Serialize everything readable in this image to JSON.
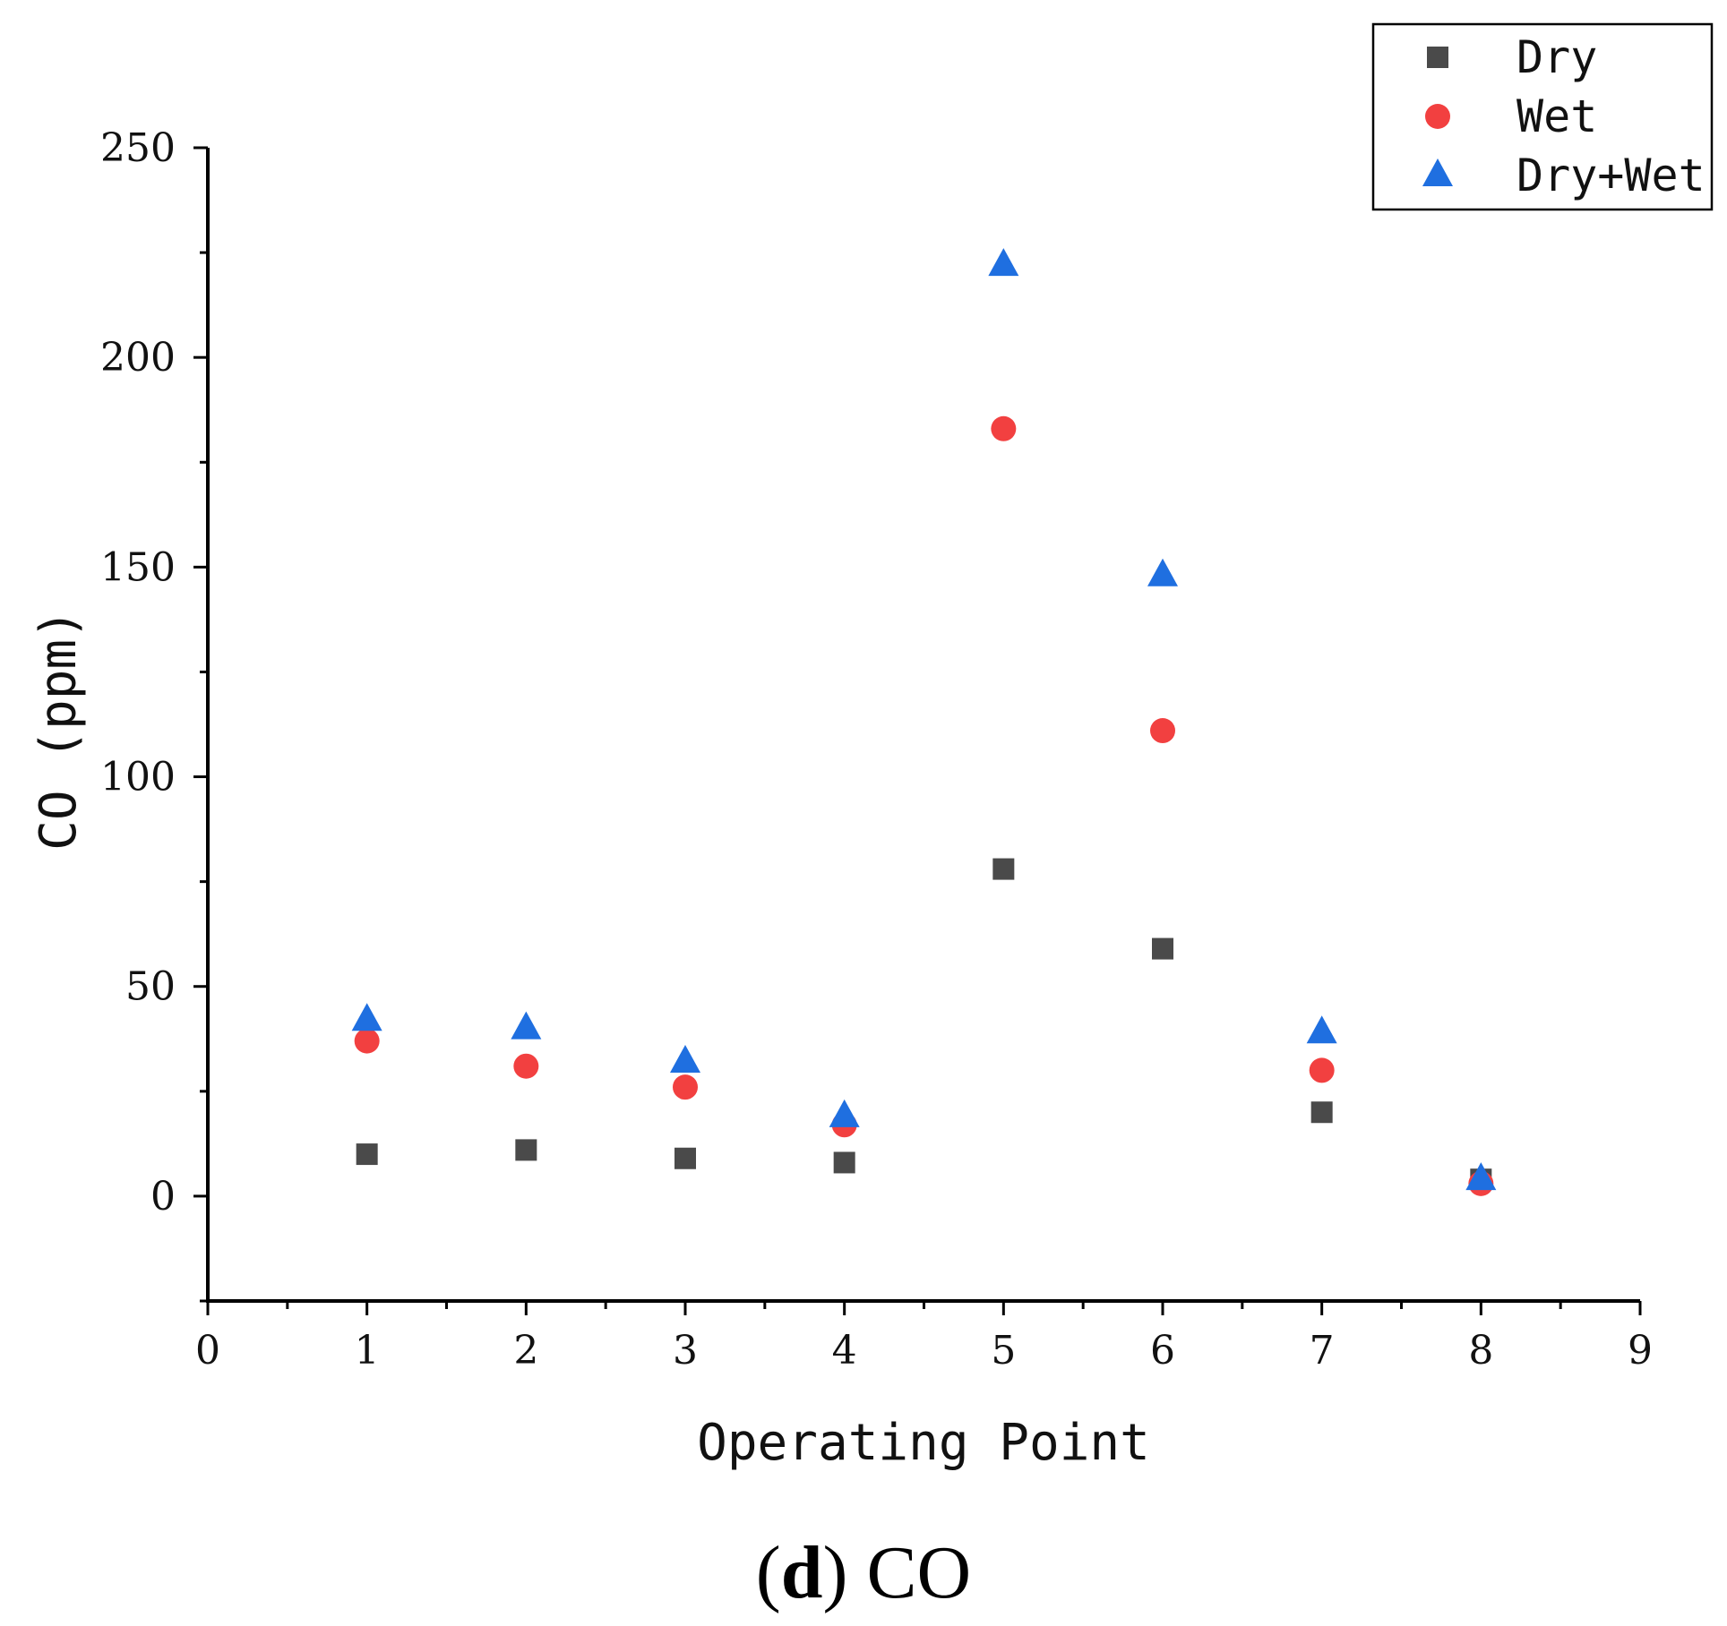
{
  "chart_data": {
    "type": "scatter",
    "title": "",
    "xlabel": "Operating Point",
    "ylabel": "CO (ppm)",
    "xlim": [
      0,
      9
    ],
    "ylim": [
      -25,
      250
    ],
    "xticks": [
      0,
      1,
      2,
      3,
      4,
      5,
      6,
      7,
      8,
      9
    ],
    "yticks": [
      0,
      50,
      100,
      150,
      200,
      250
    ],
    "x": [
      1,
      2,
      3,
      4,
      5,
      6,
      7,
      8
    ],
    "series": [
      {
        "name": "Dry",
        "marker": "square",
        "color": "#4a4a4a",
        "values": [
          10,
          11,
          9,
          8,
          78,
          59,
          20,
          4
        ]
      },
      {
        "name": "Wet",
        "marker": "circle",
        "color": "#f24040",
        "values": [
          37,
          31,
          26,
          17,
          183,
          111,
          30,
          3
        ]
      },
      {
        "name": "Dry+Wet",
        "marker": "triangle",
        "color": "#1f6fe0",
        "values": [
          42,
          40,
          32,
          19,
          222,
          148,
          39,
          4
        ]
      }
    ],
    "legend_position": "top-right",
    "grid": false
  },
  "caption": {
    "label": "d",
    "text": "CO"
  }
}
